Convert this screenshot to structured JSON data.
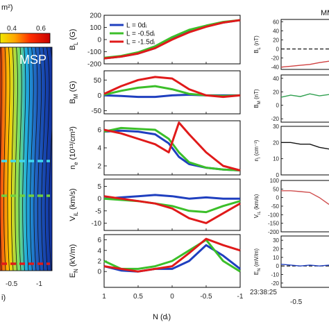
{
  "left_panel": {
    "colorbar_label": "m²)",
    "colorbar_ticks": [
      "0.4",
      "0.6"
    ],
    "region_label": "MSP",
    "x_ticks": [
      "-0.5",
      "-1"
    ],
    "x_label_fragment": "i)",
    "line_colors": [
      "#40d8f0",
      "#70d040",
      "#e01a1a"
    ]
  },
  "middle_panel": {
    "x_label": "N (dᵢ)",
    "x_ticks": [
      "1",
      "0.5",
      "0",
      "-0.5",
      "-1"
    ],
    "legend": [
      {
        "name": "L = 0dᵢ",
        "color": "#1f3fbf"
      },
      {
        "name": "L = -0.5dᵢ",
        "color": "#3cbf2a"
      },
      {
        "name": "L = -1.5dᵢ",
        "color": "#e01a1a"
      }
    ]
  },
  "right_panel": {
    "title_fragment": "MM",
    "time_label": "23:38:25",
    "x_tick": "-0.5"
  },
  "chart_data": [
    {
      "type": "line",
      "ylabel": "B_L (G)",
      "ylim": [
        -200,
        200
      ],
      "yticks": [
        "200",
        "100",
        "0",
        "-100",
        "-200"
      ],
      "xlim": [
        1,
        -1
      ],
      "x": [
        1,
        0.75,
        0.5,
        0.25,
        0,
        -0.25,
        -0.5,
        -0.75,
        -1
      ],
      "series": [
        {
          "name": "L = 0dᵢ",
          "color": "#1f3fbf",
          "values": [
            -155,
            -140,
            -115,
            -70,
            5,
            70,
            110,
            140,
            160
          ]
        },
        {
          "name": "L = -0.5dᵢ",
          "color": "#3cbf2a",
          "values": [
            -150,
            -135,
            -105,
            -55,
            20,
            80,
            115,
            145,
            160
          ]
        },
        {
          "name": "L = -1.5dᵢ",
          "color": "#e01a1a",
          "values": [
            -155,
            -140,
            -115,
            -70,
            0,
            60,
            105,
            140,
            160
          ]
        }
      ]
    },
    {
      "type": "line",
      "ylabel": "B_M (G)",
      "ylim": [
        -60,
        80
      ],
      "yticks": [
        "50",
        "0",
        "-50"
      ],
      "xlim": [
        1,
        -1
      ],
      "x": [
        1,
        0.75,
        0.5,
        0.25,
        0,
        -0.25,
        -0.5,
        -0.75,
        -1
      ],
      "series": [
        {
          "name": "L = 0dᵢ",
          "color": "#1f3fbf",
          "values": [
            0,
            -2,
            -5,
            -5,
            0,
            2,
            0,
            0,
            0
          ]
        },
        {
          "name": "L = -0.5dᵢ",
          "color": "#3cbf2a",
          "values": [
            2,
            15,
            25,
            30,
            20,
            5,
            0,
            -2,
            0
          ]
        },
        {
          "name": "L = -1.5dᵢ",
          "color": "#e01a1a",
          "values": [
            5,
            30,
            50,
            60,
            55,
            20,
            0,
            -5,
            0
          ]
        }
      ]
    },
    {
      "type": "line",
      "ylabel": "n_e (10^13/cm^3)",
      "ylim": [
        1,
        7
      ],
      "yticks": [
        "6",
        "4",
        "2"
      ],
      "xlim": [
        1,
        -1
      ],
      "x": [
        1,
        0.75,
        0.5,
        0.25,
        0.05,
        -0.1,
        -0.25,
        -0.5,
        -0.75,
        -1
      ],
      "series": [
        {
          "name": "L = 0dᵢ",
          "color": "#1f3fbf",
          "values": [
            5.8,
            5.9,
            5.8,
            5.5,
            4.5,
            3.0,
            2.2,
            1.8,
            1.6,
            1.5
          ]
        },
        {
          "name": "L = -0.5dᵢ",
          "color": "#3cbf2a",
          "values": [
            5.8,
            6.2,
            6.1,
            6.0,
            5.0,
            3.5,
            2.4,
            1.8,
            1.6,
            1.5
          ]
        },
        {
          "name": "L = -1.5dᵢ",
          "color": "#e01a1a",
          "values": [
            6.0,
            5.6,
            5.0,
            4.4,
            3.5,
            6.8,
            5.5,
            3.5,
            2.0,
            1.5
          ]
        }
      ]
    },
    {
      "type": "line",
      "ylabel": "V_iL (km/s)",
      "ylim": [
        -13,
        8
      ],
      "yticks": [
        "5",
        "0",
        "-5",
        "-10"
      ],
      "xlim": [
        1,
        -1
      ],
      "x": [
        1,
        0.75,
        0.5,
        0.25,
        0,
        -0.25,
        -0.5,
        -0.75,
        -1
      ],
      "series": [
        {
          "name": "L = 0dᵢ",
          "color": "#1f3fbf",
          "values": [
            0,
            0.5,
            1,
            1.5,
            1,
            0,
            0.5,
            0,
            0
          ]
        },
        {
          "name": "L = -0.5dᵢ",
          "color": "#3cbf2a",
          "values": [
            0,
            -0.5,
            -1,
            -2,
            -3,
            -5,
            -5.5,
            -3,
            -1
          ]
        },
        {
          "name": "L = -1.5dᵢ",
          "color": "#e01a1a",
          "values": [
            1,
            0,
            -1,
            -2,
            -4,
            -8,
            -10,
            -6,
            -2
          ]
        }
      ]
    },
    {
      "type": "line",
      "ylabel": "E_N (kV/m)",
      "ylim": [
        -3,
        7
      ],
      "yticks": [
        "6",
        "4",
        "2",
        "0"
      ],
      "xlim": [
        1,
        -1
      ],
      "x": [
        1,
        0.75,
        0.5,
        0.25,
        0,
        -0.25,
        -0.5,
        -0.75,
        -1
      ],
      "series": [
        {
          "name": "L = 0dᵢ",
          "color": "#1f3fbf",
          "values": [
            1,
            0.2,
            0,
            0.5,
            0.5,
            2,
            5,
            3,
            0.5
          ]
        },
        {
          "name": "L = -0.5dᵢ",
          "color": "#3cbf2a",
          "values": [
            2,
            0.5,
            0.5,
            1,
            2,
            4,
            6,
            2,
            0
          ]
        },
        {
          "name": "L = -1.5dᵢ",
          "color": "#e01a1a",
          "values": [
            1,
            0.5,
            0,
            0.5,
            1,
            3.5,
            6.2,
            5,
            4
          ]
        }
      ]
    },
    {
      "type": "line",
      "ylabel": "B_L (nT)",
      "ylim": [
        -45,
        65
      ],
      "yticks": [
        "60",
        "40",
        "20",
        "0",
        "-20",
        "-40"
      ],
      "color": "#d04040",
      "x": [
        0,
        0.2,
        0.4,
        0.6,
        0.8,
        1.0
      ],
      "values": [
        -40,
        -38,
        -36,
        -34,
        -30,
        -27
      ]
    },
    {
      "type": "line",
      "ylabel": "B_M (nT)",
      "ylim": [
        -25,
        45
      ],
      "yticks": [
        "40",
        "20",
        "0",
        "-20"
      ],
      "color": "#30a050",
      "x": [
        0,
        0.2,
        0.4,
        0.6,
        0.8,
        1.0
      ],
      "values": [
        12,
        15,
        13,
        17,
        14,
        16
      ]
    },
    {
      "type": "line",
      "ylabel": "n_i (cm^-3)",
      "ylim": [
        0,
        30
      ],
      "yticks": [
        "30",
        "20",
        "10",
        "0"
      ],
      "color": "#111111",
      "x": [
        0,
        0.2,
        0.4,
        0.6,
        0.8,
        1.0
      ],
      "values": [
        20,
        20,
        19,
        19,
        17,
        16
      ]
    },
    {
      "type": "line",
      "ylabel": "V_iL (km/s)",
      "ylim": [
        -200,
        100
      ],
      "yticks": [
        "100",
        "50",
        "0",
        "-50",
        "-100",
        "-150",
        "-200"
      ],
      "color": "#d05050",
      "x": [
        0,
        0.2,
        0.4,
        0.6,
        0.8,
        1.0
      ],
      "values": [
        40,
        40,
        35,
        30,
        0,
        -40
      ]
    },
    {
      "type": "line",
      "ylabel": "E_N (mV/m)",
      "ylim": [
        -25,
        35
      ],
      "yticks": [
        "30",
        "20",
        "10",
        "0",
        "-10",
        "-20"
      ],
      "color": "#1f3fbf",
      "x": [
        0,
        0.2,
        0.4,
        0.6,
        0.8,
        1.0
      ],
      "values": [
        2,
        1,
        0,
        1,
        0,
        1
      ]
    }
  ]
}
